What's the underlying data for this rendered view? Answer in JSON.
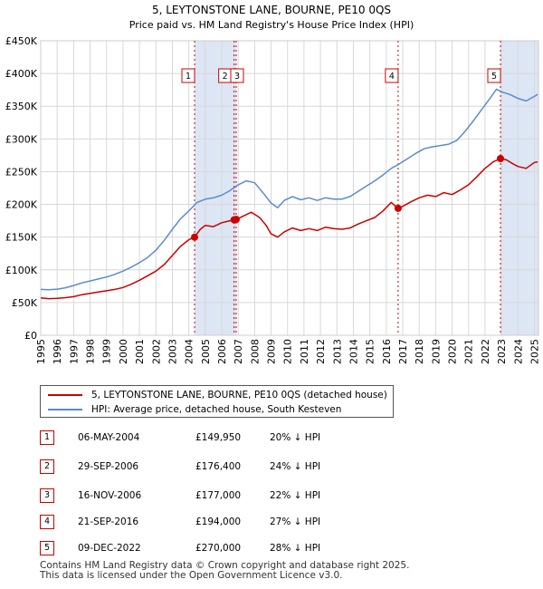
{
  "chart_data": {
    "type": "line",
    "title": "5, LEYTONSTONE LANE, BOURNE, PE10 0QS",
    "subtitle": "Price paid vs. HM Land Registry's House Price Index (HPI)",
    "xlabel": "",
    "ylabel": "",
    "xlim": [
      1995,
      2025.25
    ],
    "ylim": [
      0,
      450000
    ],
    "yticks": [
      {
        "value": 0,
        "label": "£0"
      },
      {
        "value": 50000,
        "label": "£50K"
      },
      {
        "value": 100000,
        "label": "£100K"
      },
      {
        "value": 150000,
        "label": "£150K"
      },
      {
        "value": 200000,
        "label": "£200K"
      },
      {
        "value": 250000,
        "label": "£250K"
      },
      {
        "value": 300000,
        "label": "£300K"
      },
      {
        "value": 350000,
        "label": "£350K"
      },
      {
        "value": 400000,
        "label": "£400K"
      },
      {
        "value": 450000,
        "label": "£450K"
      }
    ],
    "xticks": [
      "1995",
      "1996",
      "1997",
      "1998",
      "1999",
      "2000",
      "2001",
      "2002",
      "2003",
      "2004",
      "2005",
      "2006",
      "2007",
      "2008",
      "2009",
      "2010",
      "2011",
      "2012",
      "2013",
      "2014",
      "2015",
      "2016",
      "2017",
      "2018",
      "2019",
      "2020",
      "2021",
      "2022",
      "2023",
      "2024",
      "2025"
    ],
    "series": [
      {
        "name": "5, LEYTONSTONE LANE, BOURNE, PE10 0QS (detached house)",
        "color": "#cc0000",
        "points": [
          [
            1995.0,
            57000
          ],
          [
            1995.5,
            56000
          ],
          [
            1996.0,
            56500
          ],
          [
            1996.5,
            57500
          ],
          [
            1997.0,
            59000
          ],
          [
            1997.5,
            62000
          ],
          [
            1998.0,
            64000
          ],
          [
            1998.5,
            66000
          ],
          [
            1999.0,
            68000
          ],
          [
            1999.5,
            70000
          ],
          [
            2000.0,
            73000
          ],
          [
            2000.5,
            78000
          ],
          [
            2001.0,
            84000
          ],
          [
            2001.5,
            91000
          ],
          [
            2002.0,
            98000
          ],
          [
            2002.5,
            108000
          ],
          [
            2003.0,
            122000
          ],
          [
            2003.5,
            136000
          ],
          [
            2004.0,
            146000
          ],
          [
            2004.35,
            149950
          ],
          [
            2004.7,
            162000
          ],
          [
            2005.0,
            168000
          ],
          [
            2005.5,
            166000
          ],
          [
            2006.0,
            172000
          ],
          [
            2006.5,
            175000
          ],
          [
            2006.75,
            176400
          ],
          [
            2006.88,
            177000
          ],
          [
            2007.3,
            182000
          ],
          [
            2007.8,
            188000
          ],
          [
            2008.3,
            180000
          ],
          [
            2008.7,
            168000
          ],
          [
            2009.0,
            155000
          ],
          [
            2009.4,
            150000
          ],
          [
            2009.8,
            158000
          ],
          [
            2010.3,
            164000
          ],
          [
            2010.8,
            160000
          ],
          [
            2011.3,
            163000
          ],
          [
            2011.8,
            160000
          ],
          [
            2012.3,
            165000
          ],
          [
            2012.8,
            163000
          ],
          [
            2013.3,
            162000
          ],
          [
            2013.8,
            164000
          ],
          [
            2014.3,
            170000
          ],
          [
            2014.8,
            175000
          ],
          [
            2015.3,
            180000
          ],
          [
            2015.8,
            190000
          ],
          [
            2016.3,
            203000
          ],
          [
            2016.72,
            194000
          ],
          [
            2017.0,
            197000
          ],
          [
            2017.5,
            204000
          ],
          [
            2018.0,
            210000
          ],
          [
            2018.5,
            214000
          ],
          [
            2019.0,
            212000
          ],
          [
            2019.5,
            218000
          ],
          [
            2020.0,
            215000
          ],
          [
            2020.5,
            222000
          ],
          [
            2021.0,
            230000
          ],
          [
            2021.5,
            242000
          ],
          [
            2022.0,
            255000
          ],
          [
            2022.5,
            265000
          ],
          [
            2022.94,
            270000
          ],
          [
            2023.3,
            268000
          ],
          [
            2023.7,
            262000
          ],
          [
            2024.0,
            258000
          ],
          [
            2024.5,
            255000
          ],
          [
            2025.0,
            264000
          ],
          [
            2025.2,
            265000
          ]
        ]
      },
      {
        "name": "HPI: Average price, detached house, South Kesteven",
        "color": "#5b8cc8",
        "points": [
          [
            1995.0,
            70000
          ],
          [
            1995.5,
            69500
          ],
          [
            1996.0,
            70500
          ],
          [
            1996.5,
            72500
          ],
          [
            1997.0,
            76000
          ],
          [
            1997.5,
            80000
          ],
          [
            1998.0,
            83000
          ],
          [
            1998.5,
            86000
          ],
          [
            1999.0,
            89000
          ],
          [
            1999.5,
            93000
          ],
          [
            2000.0,
            98000
          ],
          [
            2000.5,
            104000
          ],
          [
            2001.0,
            111000
          ],
          [
            2001.5,
            119000
          ],
          [
            2002.0,
            130000
          ],
          [
            2002.5,
            145000
          ],
          [
            2003.0,
            162000
          ],
          [
            2003.5,
            178000
          ],
          [
            2004.0,
            190000
          ],
          [
            2004.5,
            203000
          ],
          [
            2005.0,
            208000
          ],
          [
            2005.5,
            210000
          ],
          [
            2006.0,
            214000
          ],
          [
            2006.5,
            221000
          ],
          [
            2007.0,
            230000
          ],
          [
            2007.5,
            236000
          ],
          [
            2008.0,
            233000
          ],
          [
            2008.5,
            218000
          ],
          [
            2009.0,
            202000
          ],
          [
            2009.4,
            195000
          ],
          [
            2009.8,
            206000
          ],
          [
            2010.3,
            212000
          ],
          [
            2010.8,
            207000
          ],
          [
            2011.3,
            210000
          ],
          [
            2011.8,
            206000
          ],
          [
            2012.3,
            210000
          ],
          [
            2012.8,
            208000
          ],
          [
            2013.3,
            208000
          ],
          [
            2013.8,
            212000
          ],
          [
            2014.3,
            220000
          ],
          [
            2014.8,
            228000
          ],
          [
            2015.3,
            236000
          ],
          [
            2015.8,
            245000
          ],
          [
            2016.3,
            255000
          ],
          [
            2016.8,
            262000
          ],
          [
            2017.3,
            270000
          ],
          [
            2017.8,
            278000
          ],
          [
            2018.3,
            285000
          ],
          [
            2018.8,
            288000
          ],
          [
            2019.3,
            290000
          ],
          [
            2019.8,
            292000
          ],
          [
            2020.3,
            298000
          ],
          [
            2020.8,
            312000
          ],
          [
            2021.3,
            328000
          ],
          [
            2021.8,
            345000
          ],
          [
            2022.3,
            362000
          ],
          [
            2022.7,
            376000
          ],
          [
            2023.0,
            372000
          ],
          [
            2023.5,
            368000
          ],
          [
            2024.0,
            362000
          ],
          [
            2024.5,
            358000
          ],
          [
            2025.0,
            365000
          ],
          [
            2025.2,
            368000
          ]
        ]
      }
    ],
    "sales": [
      {
        "num": "1",
        "date": "06-MAY-2004",
        "x": 2004.35,
        "price": 149950,
        "price_label": "£149,950",
        "diff": "20% ↓ HPI"
      },
      {
        "num": "2",
        "date": "29-SEP-2006",
        "x": 2006.75,
        "price": 176400,
        "price_label": "£176,400",
        "diff": "24% ↓ HPI"
      },
      {
        "num": "3",
        "date": "16-NOV-2006",
        "x": 2006.88,
        "price": 177000,
        "price_label": "£177,000",
        "diff": "22% ↓ HPI"
      },
      {
        "num": "4",
        "date": "21-SEP-2016",
        "x": 2016.72,
        "price": 194000,
        "price_label": "£194,000",
        "diff": "27% ↓ HPI"
      },
      {
        "num": "5",
        "date": "09-DEC-2022",
        "x": 2022.94,
        "price": 270000,
        "price_label": "£270,000",
        "diff": "28% ↓ HPI"
      }
    ],
    "shaded_spans": [
      [
        2004.35,
        2006.88
      ],
      [
        2022.94,
        2025.25
      ]
    ],
    "colors": {
      "grid": "#d8d8d8",
      "plot_bg": "#ffffff",
      "shade": "#dce6f4",
      "sale_line": "#cc0000",
      "marker": "#cc0000"
    }
  },
  "legend": {
    "property_label": "5, LEYTONSTONE LANE, BOURNE, PE10 0QS (detached house)",
    "hpi_label": "HPI: Average price, detached house, South Kesteven"
  },
  "footer": {
    "line1": "Contains HM Land Registry data © Crown copyright and database right 2025.",
    "line2": "This data is licensed under the Open Government Licence v3.0."
  }
}
